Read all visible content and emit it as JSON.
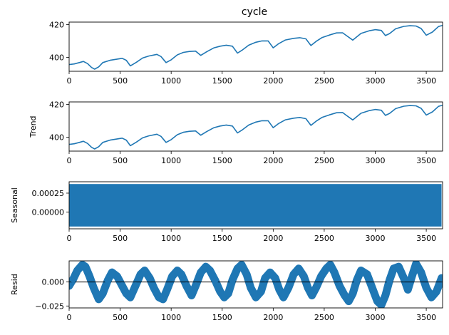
{
  "figure": {
    "title": "cycle",
    "line_color": "#1f77b4"
  },
  "chart_data": [
    {
      "type": "line",
      "title": "cycle",
      "ylabel": "",
      "xlabel": "",
      "xlim": [
        0,
        3660
      ],
      "ylim": [
        391.5,
        421.5
      ],
      "xticks": [
        0,
        500,
        1000,
        1500,
        2000,
        2500,
        3000,
        3500
      ],
      "yticks": [
        400,
        420
      ],
      "ytick_labels": [
        "400",
        "420"
      ],
      "series": [
        {
          "x": [
            0,
            50,
            100,
            140,
            180,
            220,
            250,
            290,
            330,
            400,
            460,
            520,
            560,
            600,
            660,
            720,
            780,
            860,
            900,
            950,
            1000,
            1060,
            1120,
            1180,
            1240,
            1290,
            1350,
            1420,
            1480,
            1540,
            1600,
            1650,
            1700,
            1760,
            1830,
            1890,
            1950,
            2000,
            2050,
            2120,
            2200,
            2260,
            2320,
            2370,
            2420,
            2480,
            2550,
            2620,
            2680,
            2720,
            2780,
            2860,
            2940,
            3000,
            3060,
            3100,
            3140,
            3200,
            3280,
            3340,
            3400,
            3450,
            3500,
            3560,
            3620,
            3660
          ],
          "values": [
            395.6,
            396.0,
            396.8,
            397.5,
            396.2,
            393.8,
            392.8,
            394.2,
            396.8,
            398.2,
            398.8,
            399.4,
            398.2,
            394.8,
            397.0,
            399.6,
            400.8,
            401.8,
            400.5,
            396.8,
            398.5,
            401.5,
            403.0,
            403.6,
            403.8,
            401.2,
            403.5,
            405.8,
            406.8,
            407.4,
            406.8,
            402.6,
            404.6,
            407.4,
            409.2,
            410.0,
            410.0,
            405.8,
            408.2,
            410.6,
            411.6,
            412.0,
            411.3,
            407.2,
            409.7,
            412.1,
            413.6,
            414.9,
            415.0,
            413.2,
            410.5,
            414.6,
            416.2,
            416.9,
            416.4,
            413.3,
            414.5,
            417.4,
            418.9,
            419.3,
            419.1,
            417.6,
            413.5,
            415.4,
            418.8,
            419.5
          ]
        }
      ]
    },
    {
      "type": "line",
      "title": "",
      "ylabel": "Trend",
      "xlabel": "",
      "xlim": [
        0,
        3660
      ],
      "ylim": [
        391.5,
        421.5
      ],
      "xticks": [
        0,
        500,
        1000,
        1500,
        2000,
        2500,
        3000,
        3500
      ],
      "yticks": [
        400,
        420
      ],
      "ytick_labels": [
        "400",
        "420"
      ],
      "series": [
        {
          "x": [
            0,
            50,
            100,
            140,
            180,
            220,
            250,
            290,
            330,
            400,
            460,
            520,
            560,
            600,
            660,
            720,
            780,
            860,
            900,
            950,
            1000,
            1060,
            1120,
            1180,
            1240,
            1290,
            1350,
            1420,
            1480,
            1540,
            1600,
            1650,
            1700,
            1760,
            1830,
            1890,
            1950,
            2000,
            2050,
            2120,
            2200,
            2260,
            2320,
            2370,
            2420,
            2480,
            2550,
            2620,
            2680,
            2720,
            2780,
            2860,
            2940,
            3000,
            3060,
            3100,
            3140,
            3200,
            3280,
            3340,
            3400,
            3450,
            3500,
            3560,
            3620,
            3660
          ],
          "values": [
            395.6,
            396.0,
            396.8,
            397.5,
            396.2,
            393.8,
            392.8,
            394.2,
            396.8,
            398.2,
            398.8,
            399.4,
            398.2,
            394.8,
            397.0,
            399.6,
            400.8,
            401.8,
            400.5,
            396.8,
            398.5,
            401.5,
            403.0,
            403.6,
            403.8,
            401.2,
            403.5,
            405.8,
            406.8,
            407.4,
            406.8,
            402.6,
            404.6,
            407.4,
            409.2,
            410.0,
            410.0,
            405.8,
            408.2,
            410.6,
            411.6,
            412.0,
            411.3,
            407.2,
            409.7,
            412.1,
            413.6,
            414.9,
            415.0,
            413.2,
            410.5,
            414.6,
            416.2,
            416.9,
            416.4,
            413.3,
            414.5,
            417.4,
            418.9,
            419.3,
            419.1,
            417.6,
            413.5,
            415.4,
            418.8,
            419.5
          ]
        }
      ]
    },
    {
      "type": "area",
      "title": "",
      "ylabel": "Seasonal",
      "xlabel": "",
      "xlim": [
        0,
        3660
      ],
      "ylim": [
        -0.00022,
        0.0004
      ],
      "xticks": [
        0,
        500,
        1000,
        1500,
        2000,
        2500,
        3000,
        3500
      ],
      "yticks": [
        0.0,
        0.00025
      ],
      "ytick_labels": [
        "0.00000",
        "0.00025"
      ],
      "series": [
        {
          "x": [
            0,
            3650
          ],
          "min": -0.00019,
          "max": 0.00037
        }
      ]
    },
    {
      "type": "scatter",
      "title": "",
      "ylabel": "Resid",
      "xlabel": "",
      "xlim": [
        0,
        3660
      ],
      "ylim": [
        -0.027,
        0.022
      ],
      "xticks": [
        0,
        500,
        1000,
        1500,
        2000,
        2500,
        3000,
        3500
      ],
      "yticks": [
        -0.025,
        0.0
      ],
      "ytick_labels": [
        "−0.025",
        "0.000"
      ],
      "baseline": 0,
      "series": [
        {
          "x": [
            0,
            40,
            80,
            130,
            160,
            200,
            240,
            290,
            330,
            380,
            420,
            470,
            520,
            560,
            600,
            650,
            700,
            740,
            790,
            830,
            880,
            920,
            960,
            1010,
            1060,
            1100,
            1150,
            1200,
            1240,
            1290,
            1340,
            1380,
            1430,
            1480,
            1520,
            1560,
            1600,
            1650,
            1690,
            1740,
            1780,
            1830,
            1880,
            1920,
            1970,
            2020,
            2060,
            2100,
            2150,
            2200,
            2250,
            2300,
            2340,
            2380,
            2420,
            2470,
            2520,
            2560,
            2600,
            2650,
            2700,
            2740,
            2780,
            2820,
            2860,
            2920,
            2970,
            3020,
            3060,
            3100,
            3140,
            3180,
            3230,
            3280,
            3320,
            3360,
            3400,
            3450,
            3500,
            3550,
            3600,
            3650
          ],
          "values": [
            -0.004,
            0.003,
            0.012,
            0.018,
            0.016,
            0.006,
            -0.006,
            -0.018,
            -0.012,
            0.002,
            0.01,
            0.006,
            -0.004,
            -0.012,
            -0.016,
            -0.004,
            0.008,
            0.012,
            0.004,
            -0.006,
            -0.016,
            -0.018,
            -0.008,
            0.006,
            0.012,
            0.008,
            -0.004,
            -0.014,
            -0.004,
            0.01,
            0.016,
            0.012,
            0.002,
            -0.01,
            -0.016,
            -0.012,
            0.002,
            0.014,
            0.018,
            0.008,
            -0.006,
            -0.016,
            -0.01,
            0.004,
            0.01,
            0.004,
            -0.008,
            -0.016,
            -0.006,
            0.008,
            0.014,
            0.006,
            -0.006,
            -0.014,
            -0.006,
            0.006,
            0.014,
            0.018,
            0.01,
            -0.004,
            -0.014,
            -0.02,
            -0.012,
            0.002,
            0.012,
            0.008,
            -0.006,
            -0.02,
            -0.024,
            -0.014,
            0.002,
            0.014,
            0.016,
            0.004,
            -0.008,
            0.006,
            0.019,
            0.01,
            -0.006,
            -0.016,
            -0.01,
            0.004
          ]
        }
      ]
    }
  ]
}
